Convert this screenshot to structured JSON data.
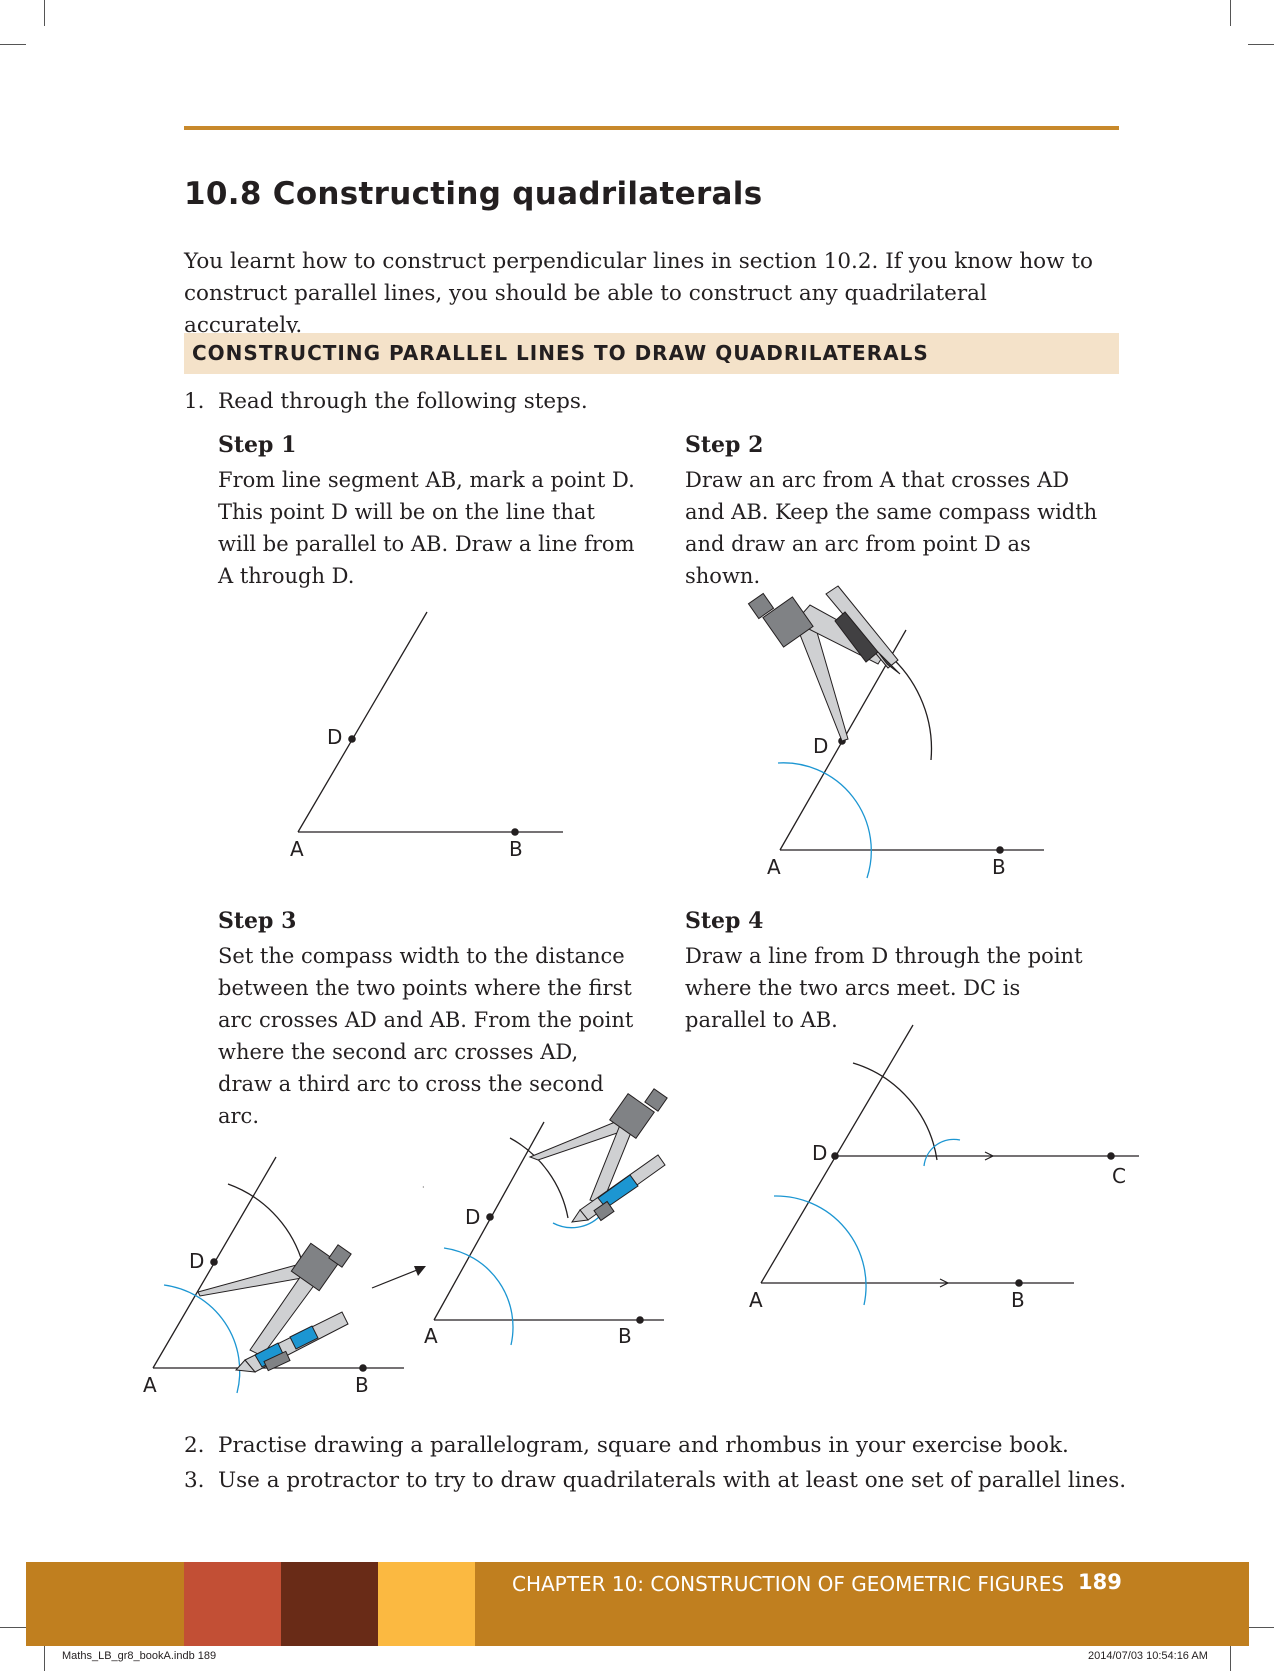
{
  "header": {
    "section_title": "10.8 Constructing quadrilaterals",
    "intro": "You learnt how to construct perpendicular lines in section 10.2. If you know how to construct parallel lines, you should be able to construct any quadrilateral accurately."
  },
  "activity": {
    "heading": "CONSTRUCTING PARALLEL LINES TO DRAW QUADRILATERALS",
    "item1_num": "1.",
    "item1_text": "Read through the following steps.",
    "steps": [
      {
        "title": "Step 1",
        "text": "From line segment AB, mark a point D. This point D will be on the line that will be parallel to AB. Draw a line from A through D."
      },
      {
        "title": "Step 2",
        "text": "Draw an arc from A that crosses AD and AB. Keep the same compass width and draw an arc from point D as shown."
      },
      {
        "title": "Step 3",
        "text": "Set the compass width to the distance between the two points where the first arc crosses AD and AB. From the point where the second arc crosses AD, draw a third arc to cross the second arc."
      },
      {
        "title": "Step 4",
        "text": "Draw a line from D through the point where the two arcs meet. DC is parallel to AB."
      }
    ],
    "item2_num": "2.",
    "item2_text": "Practise drawing a parallelogram, square and rhombus in your exercise book.",
    "item3_num": "3.",
    "item3_text": "Use a protractor to try to draw quadrilaterals with at least one set of parallel lines."
  },
  "diagram_labels": {
    "a": "A",
    "b": "B",
    "c": "C",
    "d": "D"
  },
  "footer": {
    "chapter": "CHAPTER 10: CONSTRUCTION OF GEOMETRIC FIGURES",
    "page_number": "189",
    "slug_left": "Maths_LB_gr8_bookA.indb   189",
    "slug_right": "2014/07/03   10:54:16 AM"
  },
  "colors": {
    "accent_rule": "#c8892b",
    "heading_band": "#f4e2c9",
    "footer_bar": "#c07f1f",
    "footer_swatches": [
      "#c24f35",
      "#692b17",
      "#fbb941"
    ],
    "arc_blue": "#1c96d2"
  }
}
